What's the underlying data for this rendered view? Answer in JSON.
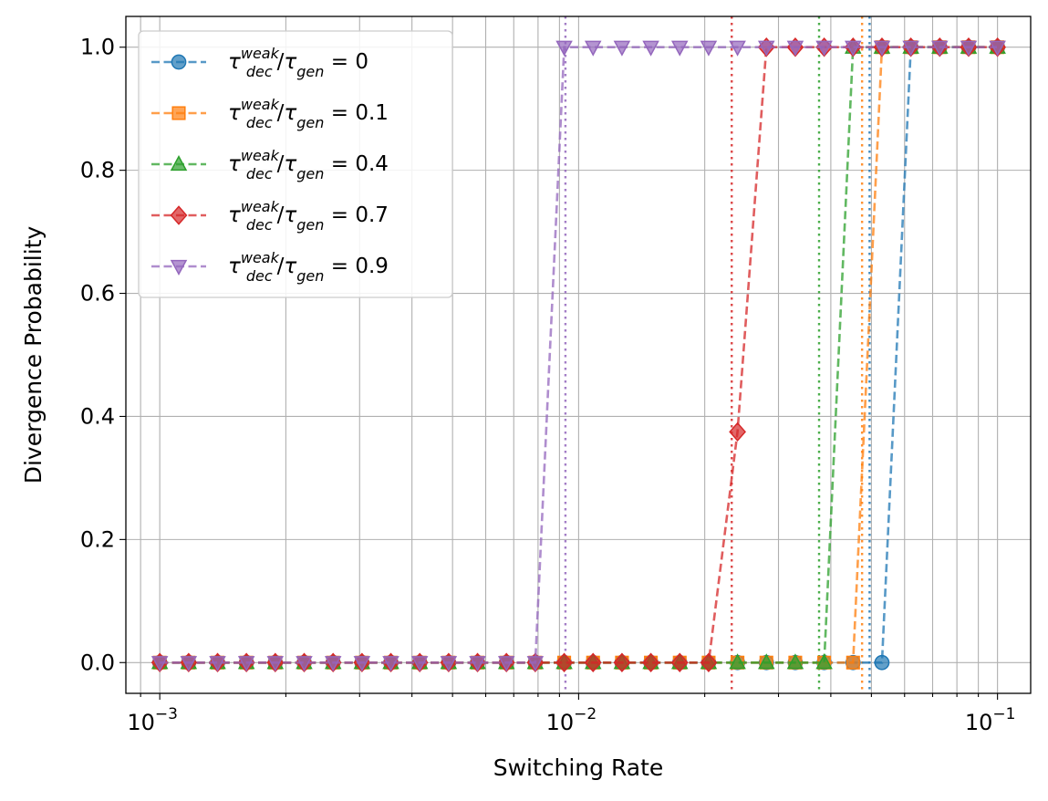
{
  "chart_data": {
    "type": "line",
    "xlabel": "Switching Rate",
    "ylabel": "Divergence Probability",
    "xscale": "log",
    "xlim": [
      0.00083,
      0.12
    ],
    "ylim": [
      -0.05,
      1.05
    ],
    "xticks": [
      {
        "value": 0.001,
        "base": "10",
        "exp": "−3"
      },
      {
        "value": 0.01,
        "base": "10",
        "exp": "−2"
      },
      {
        "value": 0.1,
        "base": "10",
        "exp": "−1"
      }
    ],
    "yticks": [
      {
        "value": 0.0,
        "label": "0.0"
      },
      {
        "value": 0.2,
        "label": "0.2"
      },
      {
        "value": 0.4,
        "label": "0.4"
      },
      {
        "value": 0.6,
        "label": "0.6"
      },
      {
        "value": 0.8,
        "label": "0.8"
      },
      {
        "value": 1.0,
        "label": "1.0"
      }
    ],
    "grid": true,
    "legend_position": "top-left",
    "x": [
      0.001,
      0.001172,
      0.001374,
      0.00161,
      0.001887,
      0.002212,
      0.002593,
      0.003039,
      0.003562,
      0.004175,
      0.004894,
      0.005736,
      0.006723,
      0.00788,
      0.009237,
      0.010826,
      0.01269,
      0.014874,
      0.017433,
      0.020434,
      0.02395,
      0.028072,
      0.032903,
      0.038566,
      0.045204,
      0.052983,
      0.062102,
      0.07279,
      0.085317,
      0.1
    ],
    "series": [
      {
        "name": "τ_dec^weak/τ_gen = 0",
        "label_value": "0",
        "marker": "circle",
        "color": "#1f77b4",
        "threshold": 0.0495,
        "y": [
          0,
          0,
          0,
          0,
          0,
          0,
          0,
          0,
          0,
          0,
          0,
          0,
          0,
          0,
          0,
          0,
          0,
          0,
          0,
          0,
          0,
          0,
          0,
          0,
          0,
          0,
          1,
          1,
          1,
          1
        ]
      },
      {
        "name": "τ_dec^weak/τ_gen = 0.1",
        "label_value": "0.1",
        "marker": "square",
        "color": "#ff7f0e",
        "threshold": 0.0475,
        "y": [
          0,
          0,
          0,
          0,
          0,
          0,
          0,
          0,
          0,
          0,
          0,
          0,
          0,
          0,
          0,
          0,
          0,
          0,
          0,
          0,
          0,
          0,
          0,
          0,
          0,
          1,
          1,
          1,
          1,
          1
        ]
      },
      {
        "name": "τ_dec^weak/τ_gen = 0.4",
        "label_value": "0.4",
        "marker": "triangle-up",
        "color": "#2ca02c",
        "threshold": 0.0375,
        "y": [
          0,
          0,
          0,
          0,
          0,
          0,
          0,
          0,
          0,
          0,
          0,
          0,
          0,
          0,
          0,
          0,
          0,
          0,
          0,
          0,
          0,
          0,
          0,
          0,
          1,
          1,
          1,
          1,
          1,
          1
        ]
      },
      {
        "name": "τ_dec^weak/τ_gen = 0.7",
        "label_value": "0.7",
        "marker": "diamond",
        "color": "#d62728",
        "threshold": 0.0232,
        "y": [
          0,
          0,
          0,
          0,
          0,
          0,
          0,
          0,
          0,
          0,
          0,
          0,
          0,
          0,
          0,
          0,
          0,
          0,
          0,
          0,
          0.375,
          1,
          1,
          1,
          1,
          1,
          1,
          1,
          1,
          1
        ]
      },
      {
        "name": "τ_dec^weak/τ_gen = 0.9",
        "label_value": "0.9",
        "marker": "triangle-down",
        "color": "#9467bd",
        "threshold": 0.0093,
        "y": [
          0,
          0,
          0,
          0,
          0,
          0,
          0,
          0,
          0,
          0,
          0,
          0,
          0,
          0,
          1,
          1,
          1,
          1,
          1,
          1,
          1,
          1,
          1,
          1,
          1,
          1,
          1,
          1,
          1,
          1
        ]
      }
    ]
  }
}
